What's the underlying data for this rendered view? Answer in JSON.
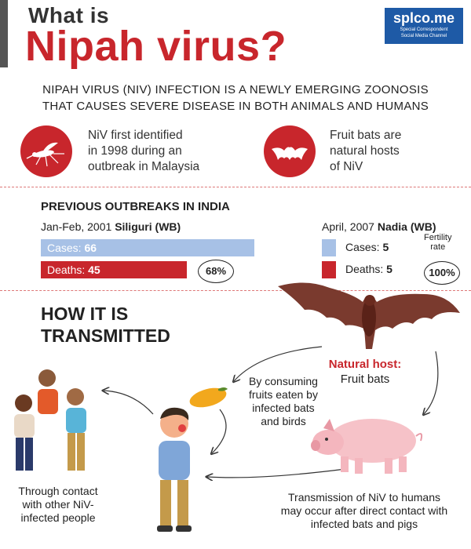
{
  "header": {
    "title_top": "What is",
    "title_main": "Nipah virus?",
    "logo_main": "splco.me",
    "logo_sub1": "Special Correspondent",
    "logo_sub2": "Social Media Channel"
  },
  "intro": {
    "line1": "NIPAH VIRUS (NIV) INFECTION IS A NEWLY EMERGING ZOONOSIS",
    "line2": "THAT CAUSES SEVERE DISEASE IN BOTH ANIMALS AND HUMANS"
  },
  "facts": [
    {
      "icon": "mosquito-icon",
      "lines": [
        "NiV first identified",
        "in 1998 during an",
        "outbreak in Malaysia"
      ]
    },
    {
      "icon": "bat-icon",
      "lines": [
        "Fruit bats are",
        "natural hosts",
        "of NiV"
      ]
    }
  ],
  "outbreaks": {
    "title": "PREVIOUS OUTBREAKS IN INDIA",
    "siliguri": {
      "date": "Jan-Feb, 2001",
      "place": "Siliguri (WB)",
      "cases_label": "Cases:",
      "cases_value": "66",
      "deaths_label": "Deaths:",
      "deaths_value": "45",
      "rate": "68%"
    },
    "nadia": {
      "date": "April, 2007",
      "place": "Nadia (WB)",
      "cases_label": "Cases:",
      "cases_value": "5",
      "deaths_label": "Deaths:",
      "deaths_value": "5",
      "rate_label_1": "Fertility",
      "rate_label_2": "rate",
      "rate": "100%"
    },
    "colors": {
      "cases": "#a7c1e6",
      "deaths": "#c8262c"
    }
  },
  "transmission": {
    "title_line1": "HOW IT IS",
    "title_line2": "TRANSMITTED",
    "natural_host_label": "Natural host:",
    "natural_host_value": "Fruit bats",
    "fruit_caption": [
      "By consuming",
      "fruits eaten by",
      "infected bats",
      "and birds"
    ],
    "contact_caption": [
      "Through contact",
      "with other NiV-",
      "infected people"
    ],
    "direct_caption": [
      "Transmission of NiV to humans",
      "may occur after direct contact with",
      "infected bats and pigs"
    ]
  }
}
